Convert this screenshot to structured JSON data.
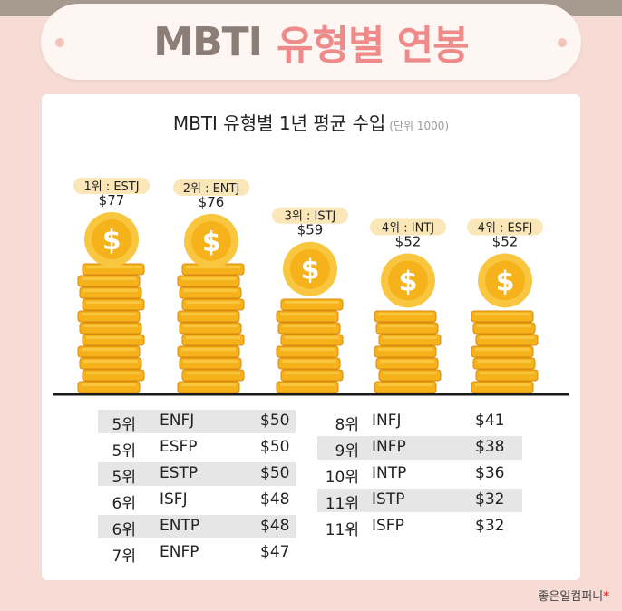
{
  "header": {
    "title_a": "MBTI",
    "title_b": "유형별 연봉"
  },
  "chart": {
    "title": "MBTI 유형별 1년 평균 수입",
    "unit": "(단위 1000)"
  },
  "chart_data": {
    "type": "bar",
    "title": "MBTI 유형별 1년 평균 수입",
    "ylabel": "",
    "categories": [
      "ESTJ",
      "ENTJ",
      "ISTJ",
      "INTJ",
      "ESFJ"
    ],
    "ranks": [
      "1위 : ESTJ",
      "2위 : ENTJ",
      "3위 : ISTJ",
      "4위 : INTJ",
      "4위 : ESFJ"
    ],
    "values": [
      77,
      76,
      59,
      52,
      52
    ],
    "value_labels": [
      "$77",
      "$76",
      "$59",
      "$52",
      "$52"
    ],
    "ylim": [
      0,
      80
    ]
  },
  "table": {
    "left": [
      {
        "rank": "5위",
        "type": "ENFJ",
        "value": "$50",
        "shaded": true
      },
      {
        "rank": "5위",
        "type": "ESFP",
        "value": "$50",
        "shaded": false
      },
      {
        "rank": "5위",
        "type": "ESTP",
        "value": "$50",
        "shaded": true
      },
      {
        "rank": "6위",
        "type": "ISFJ",
        "value": "$48",
        "shaded": false
      },
      {
        "rank": "6위",
        "type": "ENTP",
        "value": "$48",
        "shaded": true
      },
      {
        "rank": "7위",
        "type": "ENFP",
        "value": "$47",
        "shaded": false
      }
    ],
    "right": [
      {
        "rank": "8위",
        "type": "INFJ",
        "value": "$41",
        "shaded": false
      },
      {
        "rank": "9위",
        "type": "INFP",
        "value": "$38",
        "shaded": true
      },
      {
        "rank": "10위",
        "type": "INTP",
        "value": "$36",
        "shaded": false
      },
      {
        "rank": "11위",
        "type": "ISTP",
        "value": "$32",
        "shaded": true
      },
      {
        "rank": "11위",
        "type": "ISFP",
        "value": "$32",
        "shaded": false
      }
    ]
  },
  "footer": {
    "credit": "좋은일컴퍼니",
    "mark": "*"
  },
  "colors": {
    "coin_face": "#f6b21b",
    "coin_rim": "#f9c73f",
    "coin_edge": "#d98a0c",
    "badge": "#fbe6b8",
    "baseline": "#1a1a1a",
    "accent_pink": "#ee8a8a"
  }
}
